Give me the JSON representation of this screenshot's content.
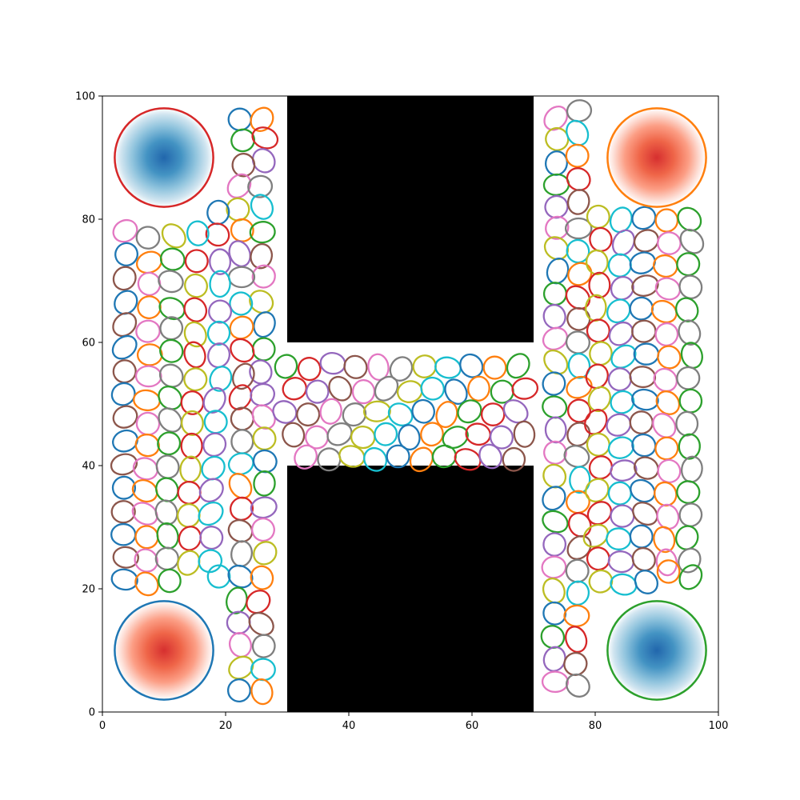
{
  "chart_data": {
    "type": "scatter",
    "title": "",
    "xlabel": "",
    "ylabel": "",
    "xlim": [
      0,
      100
    ],
    "ylim": [
      0,
      100
    ],
    "grid": false,
    "x_ticks": [
      "0",
      "20",
      "40",
      "60",
      "80",
      "100"
    ],
    "y_ticks": [
      "0",
      "20",
      "40",
      "60",
      "80",
      "100"
    ],
    "obstacles": [
      {
        "x0": 30,
        "x1": 70,
        "y0": 60,
        "y1": 100,
        "color": "#000000"
      },
      {
        "x0": 30,
        "x1": 70,
        "y0": 0,
        "y1": 40,
        "color": "#000000"
      }
    ],
    "goal_regions": [
      {
        "cx": 10,
        "cy": 90,
        "r": 8,
        "edge_color": "#d62728",
        "fill": "blue"
      },
      {
        "cx": 90,
        "cy": 90,
        "r": 8,
        "edge_color": "#ff7f0e",
        "fill": "red"
      },
      {
        "cx": 10,
        "cy": 10,
        "r": 8,
        "edge_color": "#1f77b4",
        "fill": "red"
      },
      {
        "cx": 90,
        "cy": 10,
        "r": 8,
        "edge_color": "#2ca02c",
        "fill": "blue"
      }
    ],
    "ellipse_palette": [
      "#1f77b4",
      "#ff7f0e",
      "#2ca02c",
      "#d62728",
      "#9467bd",
      "#8c564b",
      "#e377c2",
      "#7f7f7f",
      "#bcbd22",
      "#17becf"
    ],
    "ellipse_size": {
      "rx": 2.0,
      "ry": 1.75
    },
    "ellipses": [
      [
        22.3,
        96.2
      ],
      [
        25.9,
        96.2
      ],
      [
        22.8,
        92.8
      ],
      [
        26.4,
        93.2
      ],
      [
        26.2,
        89.5
      ],
      [
        22.9,
        88.8
      ],
      [
        22.2,
        85.4
      ],
      [
        25.6,
        85.3
      ],
      [
        22.0,
        81.6
      ],
      [
        25.9,
        82.0
      ],
      [
        18.8,
        81.1
      ],
      [
        22.7,
        78.2
      ],
      [
        26.0,
        77.9
      ],
      [
        18.7,
        77.5
      ],
      [
        22.3,
        74.4
      ],
      [
        25.8,
        74.0
      ],
      [
        26.2,
        70.7
      ],
      [
        22.6,
        70.6
      ],
      [
        25.8,
        66.6
      ],
      [
        22.5,
        66.3
      ],
      [
        26.3,
        62.9
      ],
      [
        22.6,
        62.4
      ],
      [
        26.2,
        58.9
      ],
      [
        22.7,
        58.7
      ],
      [
        25.7,
        55.2
      ],
      [
        22.9,
        54.5
      ],
      [
        3.7,
        78.1
      ],
      [
        7.4,
        77.0
      ],
      [
        11.6,
        77.3
      ],
      [
        15.5,
        77.7
      ],
      [
        3.9,
        74.3
      ],
      [
        7.6,
        73.0
      ],
      [
        11.4,
        73.5
      ],
      [
        15.3,
        73.2
      ],
      [
        19.1,
        73.1
      ],
      [
        3.6,
        70.4
      ],
      [
        7.6,
        69.5
      ],
      [
        11.1,
        69.9
      ],
      [
        15.2,
        69.2
      ],
      [
        19.1,
        69.5
      ],
      [
        3.8,
        66.5
      ],
      [
        7.6,
        65.7
      ],
      [
        11.3,
        65.5
      ],
      [
        15.1,
        65.3
      ],
      [
        19.1,
        65.0
      ],
      [
        3.6,
        62.9
      ],
      [
        7.4,
        61.8
      ],
      [
        11.2,
        62.3
      ],
      [
        15.1,
        61.3
      ],
      [
        18.9,
        61.5
      ],
      [
        3.6,
        59.2
      ],
      [
        7.7,
        58.0
      ],
      [
        11.2,
        58.6
      ],
      [
        15.0,
        58.0
      ],
      [
        18.9,
        57.9
      ],
      [
        3.6,
        55.3
      ],
      [
        7.5,
        54.5
      ],
      [
        11.2,
        54.6
      ],
      [
        15.1,
        54.0
      ],
      [
        19.2,
        54.1
      ],
      [
        3.4,
        51.6
      ],
      [
        7.2,
        50.6
      ],
      [
        11.0,
        51.0
      ],
      [
        14.6,
        50.2
      ],
      [
        18.2,
        50.6
      ],
      [
        3.7,
        47.9
      ],
      [
        7.4,
        46.8
      ],
      [
        11.0,
        47.4
      ],
      [
        14.6,
        46.9
      ],
      [
        18.4,
        47.1
      ],
      [
        3.7,
        44.0
      ],
      [
        7.3,
        43.3
      ],
      [
        10.8,
        43.6
      ],
      [
        14.5,
        43.2
      ],
      [
        18.2,
        43.4
      ],
      [
        3.5,
        40.2
      ],
      [
        7.0,
        39.5
      ],
      [
        10.6,
        39.8
      ],
      [
        14.3,
        39.4
      ],
      [
        18.0,
        39.6
      ],
      [
        3.5,
        36.4
      ],
      [
        6.9,
        35.9
      ],
      [
        10.5,
        36.1
      ],
      [
        14.1,
        35.6
      ],
      [
        17.7,
        36.0
      ],
      [
        3.4,
        32.5
      ],
      [
        6.9,
        32.2
      ],
      [
        10.4,
        32.4
      ],
      [
        14.0,
        31.9
      ],
      [
        17.6,
        32.2
      ],
      [
        3.4,
        28.8
      ],
      [
        7.2,
        28.4
      ],
      [
        10.6,
        28.6
      ],
      [
        14.2,
        28.2
      ],
      [
        17.7,
        28.3
      ],
      [
        3.8,
        25.1
      ],
      [
        7.1,
        24.6
      ],
      [
        10.5,
        24.9
      ],
      [
        14.0,
        24.2
      ],
      [
        17.5,
        24.5
      ],
      [
        3.6,
        21.5
      ],
      [
        7.2,
        20.8
      ],
      [
        10.9,
        21.3
      ],
      [
        22.4,
        51.1
      ],
      [
        26.0,
        51.5
      ],
      [
        22.7,
        47.6
      ],
      [
        26.2,
        47.9
      ],
      [
        22.7,
        43.9
      ],
      [
        26.3,
        44.4
      ],
      [
        22.5,
        40.3
      ],
      [
        26.4,
        40.7
      ],
      [
        22.4,
        36.7
      ],
      [
        26.3,
        37.1
      ],
      [
        22.6,
        33.0
      ],
      [
        26.2,
        33.2
      ],
      [
        22.4,
        29.4
      ],
      [
        26.1,
        29.6
      ],
      [
        22.6,
        25.7
      ],
      [
        26.4,
        25.8
      ],
      [
        18.9,
        22.0
      ],
      [
        22.4,
        22.0
      ],
      [
        25.9,
        21.8
      ],
      [
        21.8,
        18.1
      ],
      [
        25.3,
        17.9
      ],
      [
        22.1,
        14.5
      ],
      [
        25.8,
        14.3
      ],
      [
        22.4,
        10.9
      ],
      [
        26.2,
        10.7
      ],
      [
        22.5,
        7.2
      ],
      [
        26.1,
        6.9
      ],
      [
        22.2,
        3.5
      ],
      [
        25.9,
        3.3
      ],
      [
        29.8,
        56.1
      ],
      [
        33.6,
        55.7
      ],
      [
        37.4,
        56.6
      ],
      [
        41.1,
        56.0
      ],
      [
        44.8,
        56.0
      ],
      [
        48.5,
        55.7
      ],
      [
        52.3,
        56.1
      ],
      [
        56.1,
        55.9
      ],
      [
        59.9,
        56.2
      ],
      [
        63.7,
        55.9
      ],
      [
        67.5,
        56.2
      ],
      [
        31.2,
        52.5
      ],
      [
        34.9,
        52.0
      ],
      [
        38.6,
        52.5
      ],
      [
        42.4,
        52.0
      ],
      [
        46.1,
        52.5
      ],
      [
        49.9,
        52.0
      ],
      [
        53.6,
        52.5
      ],
      [
        57.4,
        52.0
      ],
      [
        61.1,
        52.5
      ],
      [
        64.9,
        52.0
      ],
      [
        68.6,
        52.5
      ],
      [
        29.6,
        48.7
      ],
      [
        33.4,
        48.3
      ],
      [
        37.1,
        48.8
      ],
      [
        40.9,
        48.3
      ],
      [
        44.6,
        48.8
      ],
      [
        48.4,
        48.3
      ],
      [
        52.1,
        48.8
      ],
      [
        55.9,
        48.3
      ],
      [
        59.6,
        48.8
      ],
      [
        63.4,
        48.3
      ],
      [
        67.1,
        48.8
      ],
      [
        31.0,
        45.0
      ],
      [
        34.8,
        44.6
      ],
      [
        38.5,
        45.1
      ],
      [
        42.3,
        44.6
      ],
      [
        46.0,
        45.1
      ],
      [
        49.8,
        44.6
      ],
      [
        53.5,
        45.1
      ],
      [
        57.3,
        44.6
      ],
      [
        61.0,
        45.1
      ],
      [
        64.8,
        44.6
      ],
      [
        68.5,
        45.1
      ],
      [
        33.0,
        41.4
      ],
      [
        36.8,
        41.0
      ],
      [
        40.5,
        41.5
      ],
      [
        44.3,
        41.0
      ],
      [
        48.0,
        41.5
      ],
      [
        51.8,
        41.0
      ],
      [
        55.5,
        41.5
      ],
      [
        59.3,
        41.0
      ],
      [
        63.0,
        41.5
      ],
      [
        66.8,
        41.0
      ],
      [
        73.6,
        96.4
      ],
      [
        77.4,
        97.6
      ],
      [
        73.8,
        93.0
      ],
      [
        77.1,
        94.0
      ],
      [
        73.7,
        89.1
      ],
      [
        77.1,
        90.3
      ],
      [
        73.7,
        85.6
      ],
      [
        77.3,
        86.5
      ],
      [
        73.7,
        82.0
      ],
      [
        77.3,
        82.8
      ],
      [
        73.8,
        78.6
      ],
      [
        77.3,
        78.5
      ],
      [
        73.7,
        75.3
      ],
      [
        77.2,
        74.8
      ],
      [
        73.9,
        71.6
      ],
      [
        77.5,
        71.1
      ],
      [
        73.5,
        67.9
      ],
      [
        77.2,
        67.3
      ],
      [
        73.4,
        64.2
      ],
      [
        77.3,
        63.8
      ],
      [
        73.5,
        60.6
      ],
      [
        77.2,
        60.0
      ],
      [
        73.6,
        56.8
      ],
      [
        77.4,
        56.2
      ],
      [
        73.3,
        53.3
      ],
      [
        77.4,
        52.7
      ],
      [
        73.4,
        49.5
      ],
      [
        77.4,
        48.9
      ],
      [
        73.6,
        45.8
      ],
      [
        77.3,
        45.1
      ],
      [
        73.5,
        42.1
      ],
      [
        77.0,
        41.5
      ],
      [
        73.4,
        38.3
      ],
      [
        77.5,
        37.7
      ],
      [
        73.3,
        34.7
      ],
      [
        77.2,
        34.1
      ],
      [
        73.5,
        30.9
      ],
      [
        77.5,
        30.4
      ],
      [
        73.4,
        27.2
      ],
      [
        77.4,
        26.7
      ],
      [
        73.3,
        23.5
      ],
      [
        77.1,
        22.9
      ],
      [
        73.3,
        19.7
      ],
      [
        77.2,
        19.3
      ],
      [
        73.4,
        16.0
      ],
      [
        77.0,
        15.6
      ],
      [
        73.1,
        12.2
      ],
      [
        76.9,
        11.8
      ],
      [
        73.4,
        8.6
      ],
      [
        76.8,
        7.8
      ],
      [
        73.5,
        4.9
      ],
      [
        77.2,
        4.3
      ],
      [
        80.5,
        80.4
      ],
      [
        84.2,
        79.9
      ],
      [
        87.9,
        80.2
      ],
      [
        91.6,
        79.8
      ],
      [
        95.3,
        80.0
      ],
      [
        80.9,
        76.7
      ],
      [
        84.6,
        76.2
      ],
      [
        88.3,
        76.5
      ],
      [
        92.0,
        76.1
      ],
      [
        95.7,
        76.4
      ],
      [
        80.3,
        73.0
      ],
      [
        84.0,
        72.5
      ],
      [
        87.7,
        72.9
      ],
      [
        91.4,
        72.4
      ],
      [
        95.1,
        72.7
      ],
      [
        80.7,
        69.3
      ],
      [
        84.4,
        68.8
      ],
      [
        88.1,
        69.2
      ],
      [
        91.8,
        68.7
      ],
      [
        95.5,
        69.0
      ],
      [
        80.1,
        65.6
      ],
      [
        83.8,
        65.1
      ],
      [
        87.5,
        65.5
      ],
      [
        91.2,
        65.0
      ],
      [
        94.9,
        65.3
      ],
      [
        80.5,
        61.9
      ],
      [
        84.2,
        61.4
      ],
      [
        87.9,
        61.8
      ],
      [
        91.6,
        61.3
      ],
      [
        95.3,
        61.6
      ],
      [
        80.9,
        58.2
      ],
      [
        84.6,
        57.7
      ],
      [
        88.3,
        58.1
      ],
      [
        92.0,
        57.6
      ],
      [
        95.7,
        57.9
      ],
      [
        80.3,
        54.5
      ],
      [
        84.0,
        54.0
      ],
      [
        87.7,
        54.4
      ],
      [
        91.4,
        53.9
      ],
      [
        95.1,
        54.2
      ],
      [
        80.7,
        50.8
      ],
      [
        84.4,
        50.3
      ],
      [
        88.1,
        50.7
      ],
      [
        91.8,
        50.2
      ],
      [
        95.5,
        50.5
      ],
      [
        80.1,
        47.1
      ],
      [
        83.8,
        46.6
      ],
      [
        87.5,
        47.0
      ],
      [
        91.2,
        46.5
      ],
      [
        94.9,
        46.8
      ],
      [
        80.5,
        43.4
      ],
      [
        84.2,
        42.9
      ],
      [
        87.9,
        43.3
      ],
      [
        91.6,
        42.8
      ],
      [
        95.3,
        43.1
      ],
      [
        80.9,
        39.7
      ],
      [
        84.6,
        39.2
      ],
      [
        88.3,
        39.6
      ],
      [
        92.0,
        39.1
      ],
      [
        95.7,
        39.4
      ],
      [
        80.3,
        36.0
      ],
      [
        84.0,
        35.5
      ],
      [
        87.7,
        35.9
      ],
      [
        91.4,
        35.4
      ],
      [
        95.1,
        35.7
      ],
      [
        80.7,
        32.3
      ],
      [
        84.4,
        31.8
      ],
      [
        88.1,
        32.2
      ],
      [
        91.8,
        31.7
      ],
      [
        95.5,
        32.0
      ],
      [
        80.1,
        28.6
      ],
      [
        83.8,
        28.1
      ],
      [
        87.5,
        28.5
      ],
      [
        91.2,
        28.0
      ],
      [
        94.9,
        28.3
      ],
      [
        80.5,
        24.9
      ],
      [
        84.2,
        24.4
      ],
      [
        87.9,
        24.8
      ],
      [
        91.6,
        24.3
      ],
      [
        95.3,
        24.6
      ],
      [
        80.9,
        21.2
      ],
      [
        84.6,
        20.7
      ],
      [
        88.3,
        21.1
      ],
      [
        91.9,
        22.8
      ],
      [
        95.5,
        21.9
      ]
    ]
  }
}
